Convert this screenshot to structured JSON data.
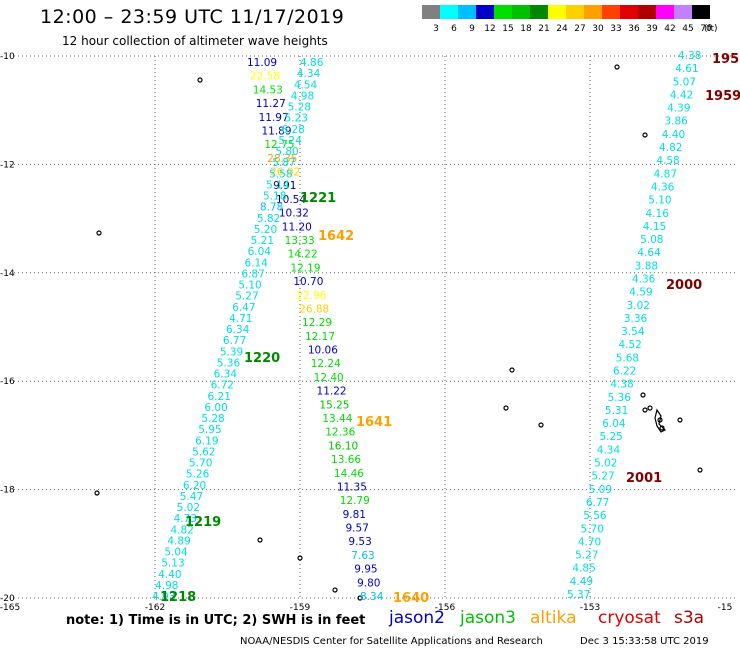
{
  "header": {
    "title": "12:00 – 23:59 UTC 11/17/2019",
    "subtitle": "12 hour collection of altimeter wave heights"
  },
  "legend": {
    "unit": "(ft)",
    "bins": [
      {
        "label": "3",
        "color": "#808080"
      },
      {
        "label": "6",
        "color": "#00ffff"
      },
      {
        "label": "9",
        "color": "#00bfff"
      },
      {
        "label": "12",
        "color": "#0000c8"
      },
      {
        "label": "15",
        "color": "#00e000"
      },
      {
        "label": "18",
        "color": "#00c000"
      },
      {
        "label": "21",
        "color": "#008800"
      },
      {
        "label": "24",
        "color": "#ffff00"
      },
      {
        "label": "27",
        "color": "#ffd000"
      },
      {
        "label": "30",
        "color": "#ffa000"
      },
      {
        "label": "33",
        "color": "#ff4000"
      },
      {
        "label": "36",
        "color": "#e00000"
      },
      {
        "label": "39",
        "color": "#b00000"
      },
      {
        "label": "42",
        "color": "#ff00ff"
      },
      {
        "label": "45",
        "color": "#c080ff"
      },
      {
        "label": "70",
        "color": "#000000"
      }
    ]
  },
  "axes": {
    "lat_labels": [
      "-10",
      "-12",
      "-14",
      "-16",
      "-18",
      "-20"
    ],
    "lon_labels": [
      "-165",
      "-162",
      "-159",
      "-156",
      "-153",
      "-15"
    ],
    "lat_range": [
      -20,
      -10
    ],
    "lon_range": [
      -165,
      -150
    ]
  },
  "passes": [
    {
      "name": "jason2-pass-1640",
      "time_label": "1640",
      "time_color": "#ffa000",
      "labels": [
        {
          "t": "11.09",
          "c": "#0000c8"
        },
        {
          "t": "22.58",
          "c": "#ffff00"
        },
        {
          "t": "14.53",
          "c": "#00e000"
        },
        {
          "t": "11.27",
          "c": "#0000c8"
        },
        {
          "t": "11.97",
          "c": "#0000c8"
        },
        {
          "t": "11.89",
          "c": "#0000c8"
        },
        {
          "t": "12.75",
          "c": "#00e000"
        },
        {
          "t": "28.35",
          "c": "#ffa000"
        },
        {
          "t": "26.02",
          "c": "#ffd000"
        },
        {
          "t": "9.91",
          "c": "#000080"
        },
        {
          "t": "10.54",
          "c": "#000080"
        },
        {
          "t": "10.32",
          "c": "#0000c8"
        },
        {
          "t": "11.20",
          "c": "#0000c8"
        },
        {
          "t": "13.33",
          "c": "#00e000"
        },
        {
          "t": "14.22",
          "c": "#00e000"
        },
        {
          "t": "12.19",
          "c": "#00e000"
        },
        {
          "t": "10.70",
          "c": "#0000c8"
        },
        {
          "t": "22.96",
          "c": "#ffff00"
        },
        {
          "t": "26.88",
          "c": "#ffd000"
        },
        {
          "t": "12.29",
          "c": "#00e000"
        },
        {
          "t": "12.17",
          "c": "#00e000"
        },
        {
          "t": "10.06",
          "c": "#0000c8"
        },
        {
          "t": "12.24",
          "c": "#00e000"
        },
        {
          "t": "12.40",
          "c": "#00e000"
        },
        {
          "t": "11.22",
          "c": "#0000c8"
        },
        {
          "t": "15.25",
          "c": "#00c000"
        },
        {
          "t": "13.44",
          "c": "#00e000"
        },
        {
          "t": "12.36",
          "c": "#00e000"
        },
        {
          "t": "16.10",
          "c": "#00c000"
        },
        {
          "t": "13.66",
          "c": "#00e000"
        },
        {
          "t": "14.46",
          "c": "#00e000"
        },
        {
          "t": "11.35",
          "c": "#0000c8"
        },
        {
          "t": "12.79",
          "c": "#00e000"
        },
        {
          "t": "9.81",
          "c": "#0000c8"
        },
        {
          "t": "9.57",
          "c": "#0000c8"
        },
        {
          "t": "9.53",
          "c": "#0000c8"
        },
        {
          "t": "7.63",
          "c": "#00bfff"
        },
        {
          "t": "9.95",
          "c": "#0000c8"
        },
        {
          "t": "9.80",
          "c": "#0000c8"
        },
        {
          "t": "8.34",
          "c": "#00bfff"
        }
      ]
    },
    {
      "name": "jason2-pass-1220",
      "time_label": "1220",
      "time_color": "#008800",
      "labels": [
        {
          "t": "4.86",
          "c": "#00e0e0"
        },
        {
          "t": "4.34",
          "c": "#00e0e0"
        },
        {
          "t": "4.54",
          "c": "#00e0e0"
        },
        {
          "t": "4.98",
          "c": "#00e0e0"
        },
        {
          "t": "5.28",
          "c": "#00e0e0"
        },
        {
          "t": "5.23",
          "c": "#00e0e0"
        },
        {
          "t": "6.28",
          "c": "#00e0e0"
        },
        {
          "t": "5.24",
          "c": "#00e0e0"
        },
        {
          "t": "5.80",
          "c": "#00e0e0"
        },
        {
          "t": "5.87",
          "c": "#00e0e0"
        },
        {
          "t": "5.58",
          "c": "#00e0e0"
        },
        {
          "t": "5.14",
          "c": "#00e0e0"
        },
        {
          "t": "5.18",
          "c": "#00e0e0"
        },
        {
          "t": "8.78",
          "c": "#00bfff"
        },
        {
          "t": "5.82",
          "c": "#00e0e0"
        },
        {
          "t": "5.20",
          "c": "#00e0e0"
        },
        {
          "t": "5.21",
          "c": "#00e0e0"
        },
        {
          "t": "6.04",
          "c": "#00e0e0"
        },
        {
          "t": "6.14",
          "c": "#00e0e0"
        },
        {
          "t": "6.87",
          "c": "#00e0e0"
        },
        {
          "t": "5.10",
          "c": "#00e0e0"
        },
        {
          "t": "5.27",
          "c": "#00e0e0"
        },
        {
          "t": "6.47",
          "c": "#00e0e0"
        },
        {
          "t": "4.71",
          "c": "#00e0e0"
        },
        {
          "t": "6.34",
          "c": "#00e0e0"
        },
        {
          "t": "6.77",
          "c": "#00e0e0"
        },
        {
          "t": "5.39",
          "c": "#00e0e0"
        },
        {
          "t": "5.36",
          "c": "#00e0e0"
        },
        {
          "t": "6.34",
          "c": "#00e0e0"
        },
        {
          "t": "6.72",
          "c": "#00e0e0"
        },
        {
          "t": "6.21",
          "c": "#00e0e0"
        },
        {
          "t": "6.00",
          "c": "#00e0e0"
        },
        {
          "t": "5.28",
          "c": "#00e0e0"
        },
        {
          "t": "5.95",
          "c": "#00e0e0"
        },
        {
          "t": "6.19",
          "c": "#00e0e0"
        },
        {
          "t": "5.62",
          "c": "#00e0e0"
        },
        {
          "t": "5.70",
          "c": "#00e0e0"
        },
        {
          "t": "5.26",
          "c": "#00e0e0"
        },
        {
          "t": "6.20",
          "c": "#00e0e0"
        },
        {
          "t": "5.47",
          "c": "#00e0e0"
        },
        {
          "t": "5.02",
          "c": "#00e0e0"
        },
        {
          "t": "4.73",
          "c": "#00e0e0"
        },
        {
          "t": "4.82",
          "c": "#00e0e0"
        },
        {
          "t": "4.89",
          "c": "#00e0e0"
        },
        {
          "t": "5.04",
          "c": "#00e0e0"
        },
        {
          "t": "5.13",
          "c": "#00e0e0"
        },
        {
          "t": "4.40",
          "c": "#00e0e0"
        },
        {
          "t": "4.98",
          "c": "#00e0e0"
        },
        {
          "t": "4.93",
          "c": "#00e0e0"
        }
      ]
    },
    {
      "name": "cryosat-pass-2000",
      "time_label": "2000",
      "time_color": "#800000",
      "labels": [
        {
          "t": "4.38",
          "c": "#00e0e0"
        },
        {
          "t": "4.61",
          "c": "#00e0e0"
        },
        {
          "t": "5.07",
          "c": "#00e0e0"
        },
        {
          "t": "4.42",
          "c": "#00e0e0"
        },
        {
          "t": "4.39",
          "c": "#00e0e0"
        },
        {
          "t": "3.86",
          "c": "#00e0e0"
        },
        {
          "t": "4.40",
          "c": "#00e0e0"
        },
        {
          "t": "4.82",
          "c": "#00e0e0"
        },
        {
          "t": "4.58",
          "c": "#00e0e0"
        },
        {
          "t": "4.87",
          "c": "#00e0e0"
        },
        {
          "t": "4.36",
          "c": "#00e0e0"
        },
        {
          "t": "5.10",
          "c": "#00e0e0"
        },
        {
          "t": "4.16",
          "c": "#00e0e0"
        },
        {
          "t": "4.15",
          "c": "#00e0e0"
        },
        {
          "t": "5.08",
          "c": "#00e0e0"
        },
        {
          "t": "4.64",
          "c": "#00e0e0"
        },
        {
          "t": "3.88",
          "c": "#00e0e0"
        },
        {
          "t": "4.36",
          "c": "#00e0e0"
        },
        {
          "t": "4.59",
          "c": "#00e0e0"
        },
        {
          "t": "3.02",
          "c": "#00e0e0"
        },
        {
          "t": "3.36",
          "c": "#00e0e0"
        },
        {
          "t": "3.54",
          "c": "#00e0e0"
        },
        {
          "t": "4.52",
          "c": "#00e0e0"
        },
        {
          "t": "5.68",
          "c": "#00e0e0"
        },
        {
          "t": "6.22",
          "c": "#00e0e0"
        },
        {
          "t": "4.38",
          "c": "#00e0e0"
        },
        {
          "t": "5.36",
          "c": "#00e0e0"
        },
        {
          "t": "5.31",
          "c": "#00e0e0"
        },
        {
          "t": "6.04",
          "c": "#00e0e0"
        },
        {
          "t": "5.25",
          "c": "#00e0e0"
        },
        {
          "t": "4.34",
          "c": "#00e0e0"
        },
        {
          "t": "5.02",
          "c": "#00e0e0"
        },
        {
          "t": "5.27",
          "c": "#00e0e0"
        },
        {
          "t": "5.09",
          "c": "#00e0e0"
        },
        {
          "t": "6.77",
          "c": "#00e0e0"
        },
        {
          "t": "5.56",
          "c": "#00e0e0"
        },
        {
          "t": "5.70",
          "c": "#00e0e0"
        },
        {
          "t": "4.70",
          "c": "#00e0e0"
        },
        {
          "t": "5.27",
          "c": "#00e0e0"
        },
        {
          "t": "4.85",
          "c": "#00e0e0"
        },
        {
          "t": "4.49",
          "c": "#00e0e0"
        },
        {
          "t": "5.37",
          "c": "#00e0e0"
        }
      ]
    }
  ],
  "time_marks": [
    {
      "t": "1221",
      "c": "#008800"
    },
    {
      "t": "1642",
      "c": "#ffa000"
    },
    {
      "t": "1220",
      "c": "#008800"
    },
    {
      "t": "1641",
      "c": "#ffa000"
    },
    {
      "t": "1219",
      "c": "#008800"
    },
    {
      "t": "1218",
      "c": "#008800"
    },
    {
      "t": "1640",
      "c": "#ffa000"
    },
    {
      "t": "195",
      "c": "#800000"
    },
    {
      "t": "1959",
      "c": "#800000"
    },
    {
      "t": "2000",
      "c": "#800000"
    },
    {
      "t": "2001",
      "c": "#800000"
    }
  ],
  "note": "note: 1) Time is in UTC; 2) SWH is in feet",
  "satellites": [
    {
      "name": "jason2",
      "color": "#0000c8"
    },
    {
      "name": "jason3",
      "color": "#00c000"
    },
    {
      "name": "altika",
      "color": "#ffa000"
    },
    {
      "name": "cryosat",
      "color": "#e00000"
    },
    {
      "name": "s3a",
      "color": "#b00000"
    }
  ],
  "footer": {
    "credit": "NOAA/NESDIS Center for Satellite Applications and Research",
    "timestamp": "Dec  3 15:33:58 UTC 2019"
  }
}
